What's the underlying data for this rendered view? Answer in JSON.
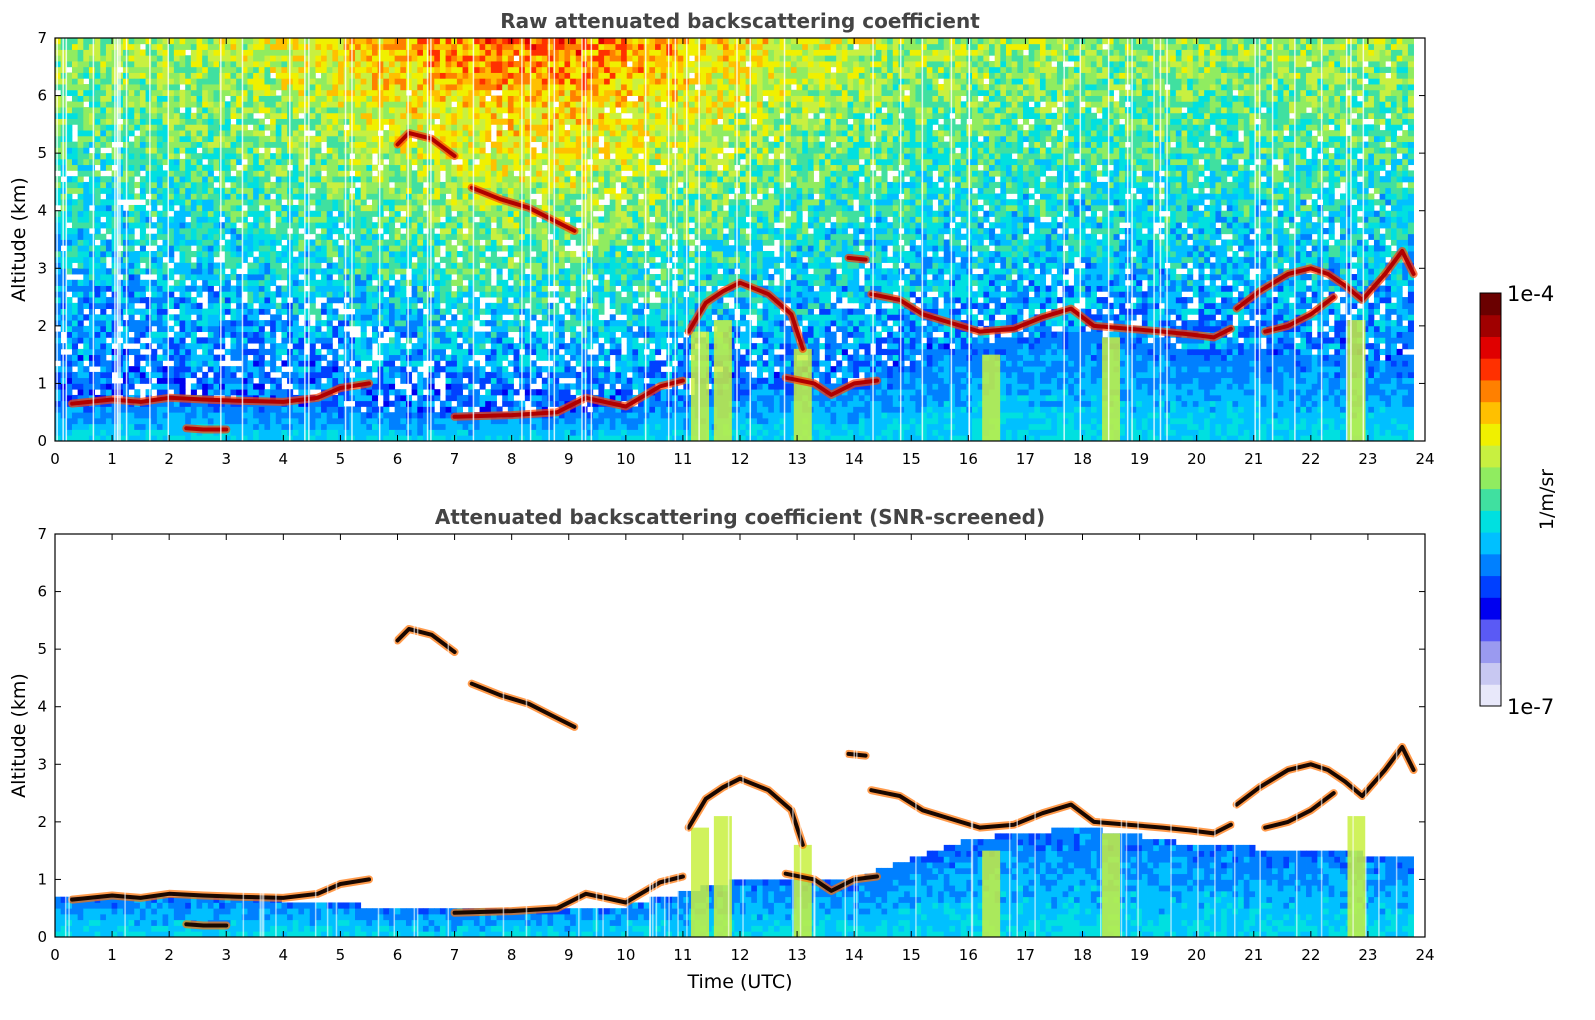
{
  "colors": {
    "colormap": [
      "#e8e8fa",
      "#c8c8f2",
      "#9a9af0",
      "#5a5af5",
      "#0000f0",
      "#0040ff",
      "#0080ff",
      "#00c0ff",
      "#00e0e0",
      "#40e0a0",
      "#90ec60",
      "#c8f040",
      "#f0f000",
      "#ffc000",
      "#ff8000",
      "#ff3000",
      "#e00000",
      "#a00000",
      "#6a0000"
    ],
    "frame": "#000000",
    "title": "#444444"
  },
  "colorbar": {
    "max_label": "1e-4",
    "min_label": "1e-7",
    "unit_label": "1/m/sr",
    "scale": "log"
  },
  "chart_data": [
    {
      "type": "heatmap",
      "title": "Raw attenuated backscattering coefficient",
      "xlabel": "",
      "ylabel": "Altitude (km)",
      "xlim": [
        0,
        24
      ],
      "ylim": [
        0,
        7
      ],
      "xticks": [
        "0",
        "1",
        "2",
        "3",
        "4",
        "5",
        "6",
        "7",
        "8",
        "9",
        "10",
        "11",
        "12",
        "13",
        "14",
        "15",
        "16",
        "17",
        "18",
        "19",
        "20",
        "21",
        "22",
        "23",
        "24"
      ],
      "yticks": [
        "0",
        "1",
        "2",
        "3",
        "4",
        "5",
        "6",
        "7"
      ],
      "cloud_layers": [
        {
          "name": "",
          "points": [
            [
              0.3,
              0.65
            ],
            [
              1.0,
              0.72
            ],
            [
              1.5,
              0.68
            ],
            [
              2.0,
              0.75
            ],
            [
              2.6,
              0.72
            ],
            [
              3.2,
              0.7
            ],
            [
              4.0,
              0.68
            ],
            [
              4.6,
              0.75
            ],
            [
              5.0,
              0.92
            ],
            [
              5.5,
              1.0
            ]
          ]
        },
        {
          "name": "",
          "points": [
            [
              2.3,
              0.22
            ],
            [
              2.6,
              0.2
            ],
            [
              3.0,
              0.2
            ]
          ]
        },
        {
          "name": "",
          "points": [
            [
              6.0,
              5.15
            ],
            [
              6.2,
              5.35
            ],
            [
              6.6,
              5.25
            ],
            [
              7.0,
              4.95
            ]
          ]
        },
        {
          "name": "",
          "points": [
            [
              7.3,
              4.4
            ],
            [
              7.8,
              4.2
            ],
            [
              8.3,
              4.05
            ],
            [
              8.7,
              3.85
            ],
            [
              9.1,
              3.65
            ]
          ]
        },
        {
          "name": "",
          "points": [
            [
              7.0,
              0.42
            ],
            [
              8.0,
              0.45
            ],
            [
              8.8,
              0.5
            ],
            [
              9.3,
              0.75
            ],
            [
              10.0,
              0.6
            ],
            [
              10.6,
              0.95
            ],
            [
              11.0,
              1.05
            ]
          ]
        },
        {
          "name": "",
          "points": [
            [
              11.1,
              1.9
            ],
            [
              11.4,
              2.4
            ],
            [
              11.7,
              2.6
            ],
            [
              12.0,
              2.75
            ],
            [
              12.5,
              2.55
            ],
            [
              12.9,
              2.2
            ],
            [
              13.1,
              1.6
            ]
          ]
        },
        {
          "name": "",
          "points": [
            [
              12.8,
              1.1
            ],
            [
              13.3,
              1.0
            ],
            [
              13.6,
              0.8
            ],
            [
              14.0,
              1.0
            ],
            [
              14.4,
              1.05
            ]
          ]
        },
        {
          "name": "",
          "points": [
            [
              13.9,
              3.18
            ],
            [
              14.2,
              3.15
            ]
          ]
        },
        {
          "name": "",
          "points": [
            [
              14.3,
              2.55
            ],
            [
              14.8,
              2.45
            ],
            [
              15.2,
              2.2
            ],
            [
              15.7,
              2.05
            ],
            [
              16.2,
              1.9
            ],
            [
              16.8,
              1.95
            ],
            [
              17.3,
              2.15
            ],
            [
              17.8,
              2.3
            ],
            [
              18.2,
              2.0
            ],
            [
              18.8,
              1.95
            ],
            [
              19.4,
              1.9
            ],
            [
              19.9,
              1.85
            ],
            [
              20.3,
              1.8
            ],
            [
              20.6,
              1.95
            ]
          ]
        },
        {
          "name": "",
          "points": [
            [
              20.7,
              2.3
            ],
            [
              21.1,
              2.6
            ],
            [
              21.6,
              2.9
            ],
            [
              22.0,
              3.0
            ],
            [
              22.3,
              2.9
            ],
            [
              22.6,
              2.7
            ],
            [
              22.9,
              2.45
            ],
            [
              23.3,
              2.9
            ],
            [
              23.6,
              3.3
            ],
            [
              23.8,
              2.9
            ]
          ]
        },
        {
          "name": "",
          "points": [
            [
              21.2,
              1.9
            ],
            [
              21.6,
              2.0
            ],
            [
              22.0,
              2.2
            ],
            [
              22.4,
              2.5
            ]
          ]
        }
      ],
      "aerosol_layer_top_km": [
        [
          0,
          0.65
        ],
        [
          2,
          0.72
        ],
        [
          4,
          0.65
        ],
        [
          6,
          0.5
        ],
        [
          8,
          0.45
        ],
        [
          10,
          0.55
        ],
        [
          12,
          1.0
        ],
        [
          14,
          1.0
        ],
        [
          16,
          1.7
        ],
        [
          18,
          1.9
        ],
        [
          20,
          1.6
        ],
        [
          22,
          1.5
        ],
        [
          23.8,
          1.4
        ]
      ],
      "precip_shafts": [
        [
          11.3,
          0,
          1.9
        ],
        [
          11.7,
          0,
          2.1
        ],
        [
          13.1,
          0,
          1.6
        ],
        [
          16.4,
          0,
          1.5
        ],
        [
          18.5,
          0,
          1.8
        ],
        [
          22.8,
          0,
          2.1
        ]
      ]
    },
    {
      "type": "heatmap",
      "title": "Attenuated backscattering coefficient (SNR-screened)",
      "xlabel": "Time (UTC)",
      "ylabel": "Altitude (km)",
      "xlim": [
        0,
        24
      ],
      "ylim": [
        0,
        7
      ],
      "xticks": [
        "0",
        "1",
        "2",
        "3",
        "4",
        "5",
        "6",
        "7",
        "8",
        "9",
        "10",
        "11",
        "12",
        "13",
        "14",
        "15",
        "16",
        "17",
        "18",
        "19",
        "20",
        "21",
        "22",
        "23",
        "24"
      ],
      "yticks": [
        "0",
        "1",
        "2",
        "3",
        "4",
        "5",
        "6",
        "7"
      ]
    }
  ]
}
